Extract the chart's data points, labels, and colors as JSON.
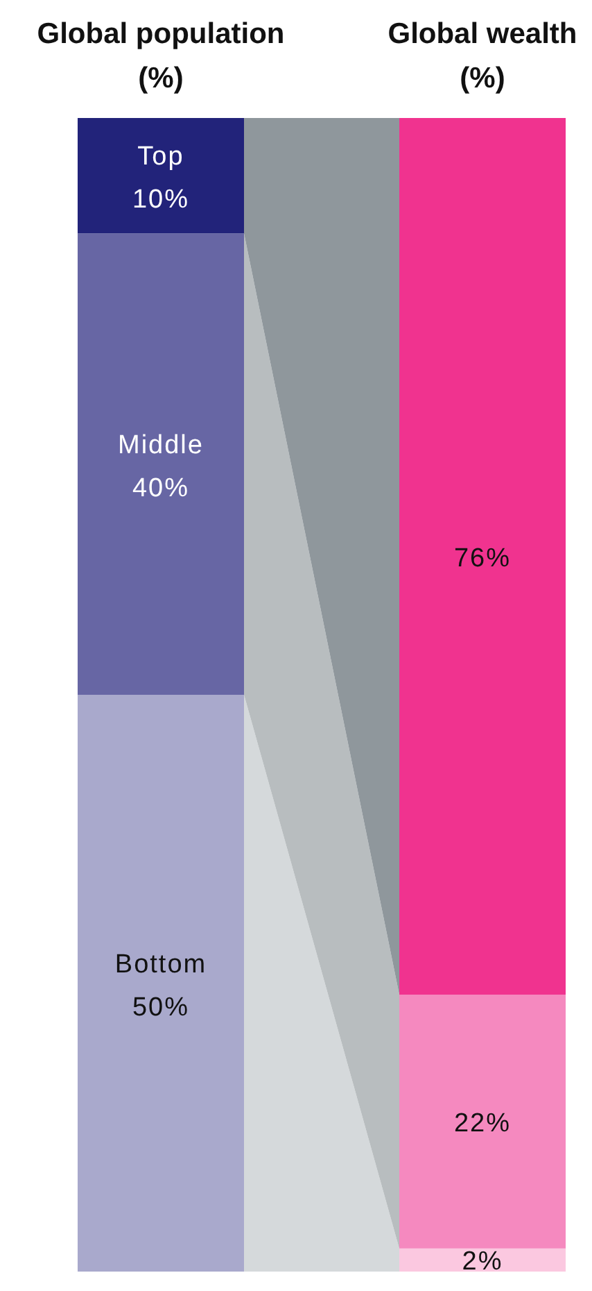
{
  "chart_data": {
    "type": "bar",
    "stacked": true,
    "categories": [
      "Global population (%)",
      "Global wealth (%)"
    ],
    "ylim": [
      0,
      100
    ],
    "tick_labels": "x",
    "series": [
      {
        "name": "Bottom",
        "colors": [
          "#a9a9cc",
          "#fbc8e0"
        ],
        "values": [
          50,
          2
        ],
        "value_labels": [
          "50%",
          "2%"
        ]
      },
      {
        "name": "Middle",
        "colors": [
          "#6766a4",
          "#f589bf"
        ],
        "values": [
          40,
          22
        ],
        "value_labels": [
          "40%",
          "22%"
        ]
      },
      {
        "name": "Top",
        "colors": [
          "#22237a",
          "#f0338f"
        ],
        "values": [
          10,
          76
        ],
        "value_labels": [
          "10%",
          "76%"
        ]
      }
    ]
  }
}
